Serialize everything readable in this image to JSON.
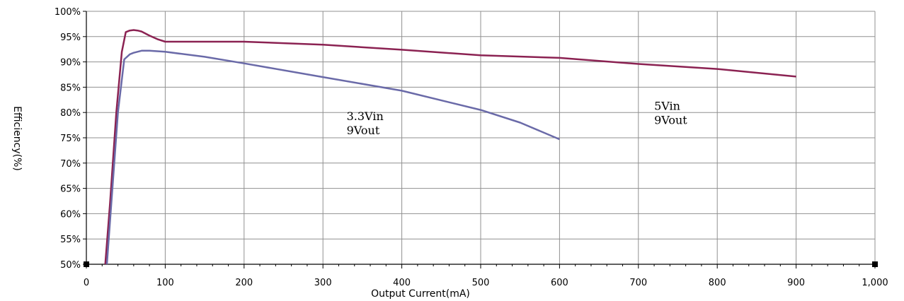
{
  "chart_data": {
    "type": "line",
    "xlabel": "Output Current(mA)",
    "ylabel": "Efficiency(%)",
    "xlim": [
      0,
      1000
    ],
    "ylim": [
      50,
      100
    ],
    "x_ticks": [
      "0",
      "100",
      "200",
      "300",
      "400",
      "500",
      "600",
      "700",
      "800",
      "900",
      "1,000"
    ],
    "y_ticks": [
      "50%",
      "55%",
      "60%",
      "65%",
      "70%",
      "75%",
      "80%",
      "85%",
      "90%",
      "95%",
      "100%"
    ],
    "grid": true,
    "annotations": [
      {
        "lines": [
          "3.3Vin",
          "9Vout"
        ],
        "x": 330,
        "y": 78.5
      },
      {
        "lines": [
          "5Vin",
          "9Vout"
        ],
        "x": 720,
        "y": 80.5
      }
    ],
    "series": [
      {
        "color": "#8b2252",
        "x": [
          24,
          30,
          38,
          45,
          50,
          55,
          60,
          65,
          70,
          80,
          90,
          100,
          200,
          300,
          400,
          500,
          600,
          700,
          800,
          900
        ],
        "y": [
          50,
          62,
          80,
          92,
          95.9,
          96.2,
          96.3,
          96.2,
          96.0,
          95.2,
          94.5,
          94.0,
          94.0,
          93.4,
          92.4,
          91.3,
          90.8,
          89.6,
          88.6,
          87.1
        ]
      },
      {
        "color": "#6a6aa8",
        "x": [
          26,
          33,
          40,
          48,
          55,
          60,
          70,
          80,
          100,
          150,
          200,
          300,
          400,
          500,
          550,
          600
        ],
        "y": [
          50,
          65,
          80,
          90.5,
          91.5,
          91.8,
          92.2,
          92.2,
          92.0,
          91.0,
          89.7,
          87.0,
          84.3,
          80.5,
          78.0,
          74.7
        ]
      }
    ]
  }
}
